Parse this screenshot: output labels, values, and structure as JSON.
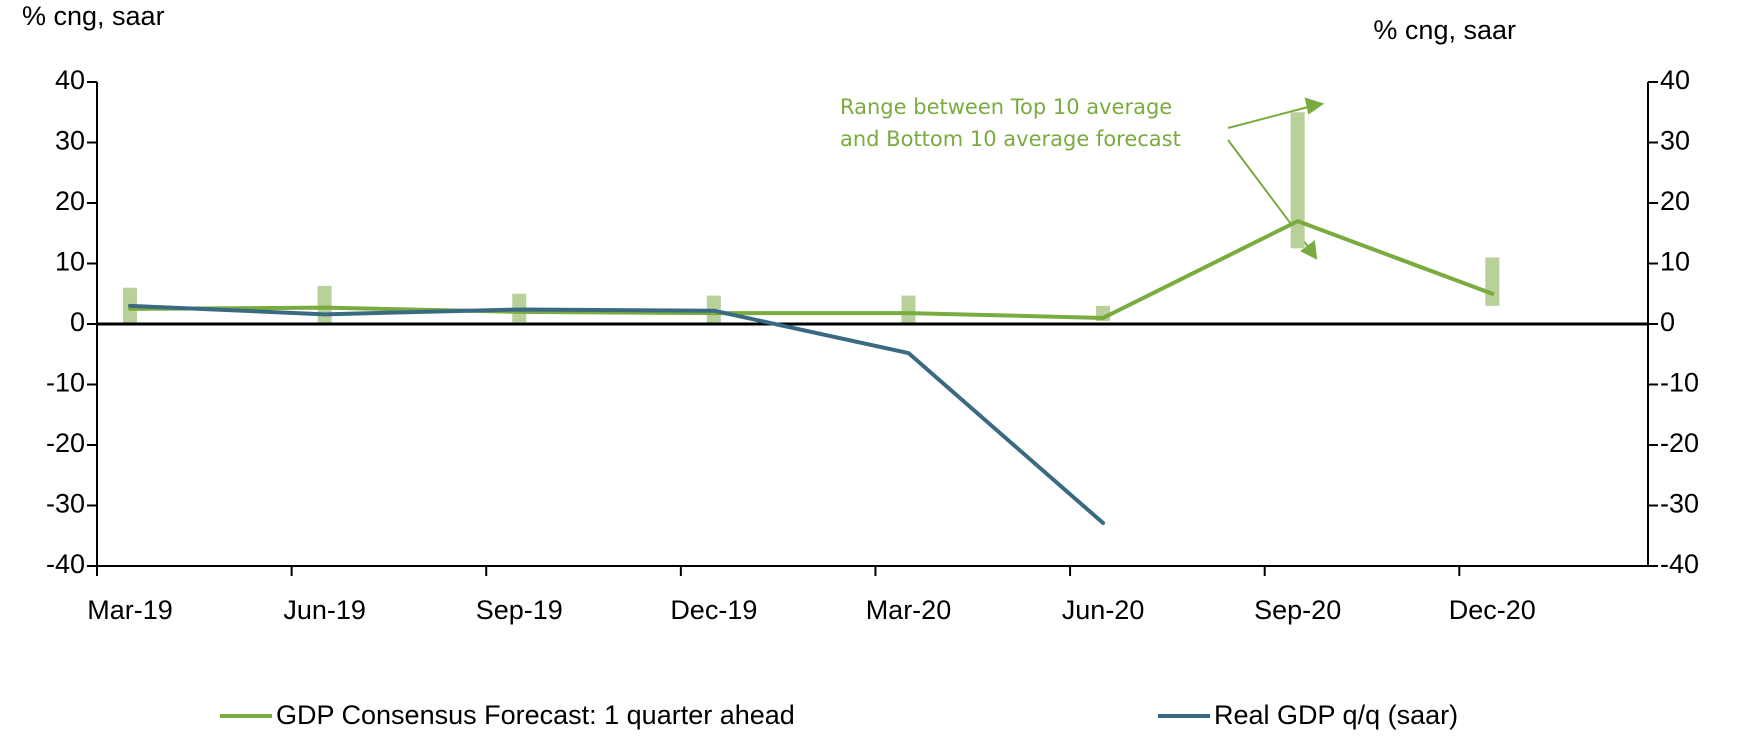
{
  "chart_data": {
    "type": "line",
    "y_label": "% cng, saar",
    "y2_label": "% cng, saar",
    "categories": [
      "Mar-19",
      "Jun-19",
      "Sep-19",
      "Dec-19",
      "Mar-20",
      "Jun-20",
      "Sep-20",
      "Dec-20"
    ],
    "series": [
      {
        "name": "GDP Consensus Forecast: 1 quarter ahead",
        "color": "#7aab3e",
        "values": [
          2.5,
          2.7,
          2.0,
          1.8,
          1.8,
          1.0,
          17,
          5
        ]
      },
      {
        "name": "Real GDP q/q (saar)",
        "color": "#3a6a82",
        "values": [
          3.0,
          1.6,
          2.4,
          2.2,
          -4.8,
          -32.9,
          null,
          null
        ]
      }
    ],
    "range": {
      "color": "#b8d19a",
      "low": [
        0,
        0,
        0.3,
        0,
        0,
        0.5,
        12.5,
        3
      ],
      "high": [
        6,
        6.3,
        5,
        4.7,
        4.7,
        3,
        35,
        11
      ]
    },
    "annotation": [
      "Range between Top 10 average",
      "and Bottom 10 average forecast"
    ],
    "ylim": [
      -40,
      40
    ],
    "yticks": [
      -40,
      -30,
      -20,
      -10,
      0,
      10,
      20,
      30,
      40
    ],
    "y2lim": [
      -40,
      40
    ],
    "y2ticks": [
      -40,
      -30,
      -20,
      -10,
      0,
      10,
      20,
      30,
      40
    ]
  }
}
